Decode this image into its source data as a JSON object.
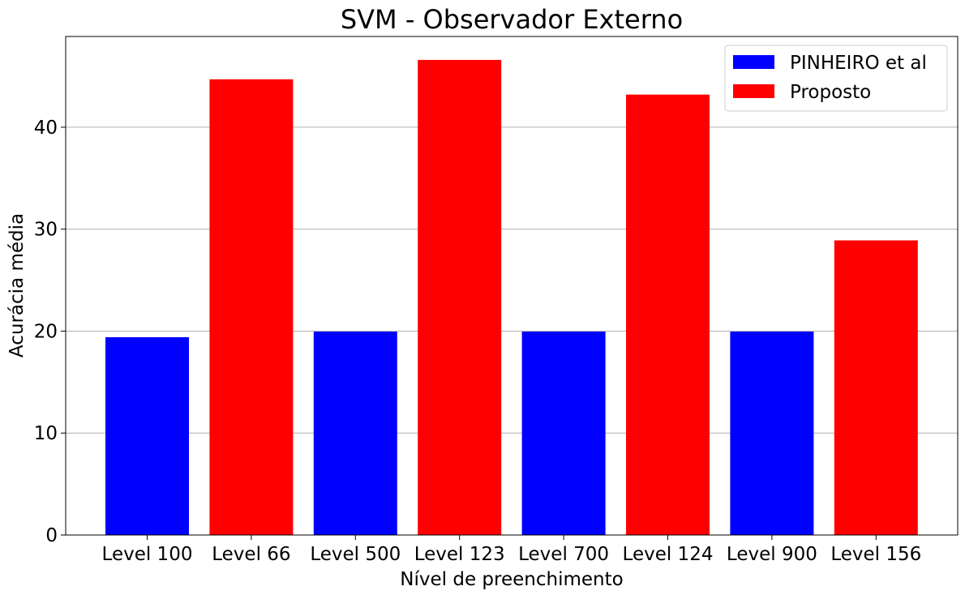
{
  "chart_data": {
    "type": "bar",
    "title": "SVM - Observador Externo",
    "xlabel": "Nível de preenchimento",
    "ylabel": "Acurácia média",
    "ylim": [
      0,
      48.9
    ],
    "yticks": [
      0,
      10,
      20,
      30,
      40
    ],
    "grid": "y",
    "legend_position": "top-right",
    "categories": [
      "Level 100",
      "Level 66",
      "Level 500",
      "Level 123",
      "Level 700",
      "Level 124",
      "Level 900",
      "Level 156"
    ],
    "series": [
      {
        "name": "PINHEIRO et al",
        "color": "#0000ff",
        "values": [
          19.4,
          null,
          19.95,
          null,
          19.95,
          null,
          19.95,
          null
        ]
      },
      {
        "name": "Proposto",
        "color": "#ff0000",
        "values": [
          null,
          44.7,
          null,
          46.6,
          null,
          43.2,
          null,
          28.9
        ]
      }
    ]
  }
}
